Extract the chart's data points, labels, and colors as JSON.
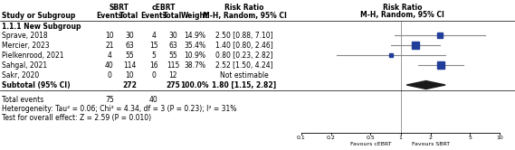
{
  "studies": [
    {
      "name": "Sprave, 2018",
      "rr": 2.5,
      "ci_lo": 0.88,
      "ci_hi": 7.1,
      "weight": "14.9%",
      "rr_str": "2.50 [0.88, 7.10]",
      "sbrt_e": 10,
      "sbrt_t": 30,
      "cebrt_e": 4,
      "cebrt_t": 30
    },
    {
      "name": "Mercier, 2023",
      "rr": 1.4,
      "ci_lo": 0.8,
      "ci_hi": 2.46,
      "weight": "35.4%",
      "rr_str": "1.40 [0.80, 2.46]",
      "sbrt_e": 21,
      "sbrt_t": 63,
      "cebrt_e": 15,
      "cebrt_t": 63
    },
    {
      "name": "Pielkenrood, 2021",
      "rr": 0.8,
      "ci_lo": 0.23,
      "ci_hi": 2.82,
      "weight": "10.9%",
      "rr_str": "0.80 [0.23, 2.82]",
      "sbrt_e": 4,
      "sbrt_t": 55,
      "cebrt_e": 5,
      "cebrt_t": 55
    },
    {
      "name": "Sahgal, 2021",
      "rr": 2.52,
      "ci_lo": 1.5,
      "ci_hi": 4.24,
      "weight": "38.7%",
      "rr_str": "2.52 [1.50, 4.24]",
      "sbrt_e": 40,
      "sbrt_t": 114,
      "cebrt_e": 16,
      "cebrt_t": 115
    },
    {
      "name": "Sakr, 2020",
      "rr": null,
      "ci_lo": null,
      "ci_hi": null,
      "weight": "",
      "rr_str": "Not estimable",
      "sbrt_e": 0,
      "sbrt_t": 10,
      "cebrt_e": 0,
      "cebrt_t": 12
    }
  ],
  "subtotal": {
    "rr": 1.8,
    "ci_lo": 1.15,
    "ci_hi": 2.82,
    "rr_str": "1.80 [1.15, 2.82]",
    "total_sbrt": 272,
    "total_cebrt": 275,
    "weight": "100.0%"
  },
  "total_events_sbrt": 75,
  "total_events_cebrt": 40,
  "heterogeneity_text": "Heterogeneity: Tau² = 0.06; Chi² = 4.34, df = 3 (P = 0.23); I² = 31%",
  "overall_effect_text": "Test for overall effect: Z = 2.59 (P = 0.010)",
  "subgroup_label": "1.1.1 New Subgroup",
  "sbrt_header": "SBRT",
  "cebrt_header": "cEBRT",
  "rr_header": "Risk Ratio",
  "mh_header": "M-H, Random, 95% CI",
  "axis_ticks": [
    0.1,
    0.2,
    0.5,
    1,
    2,
    5,
    10
  ],
  "axis_labels": [
    "0.1",
    "0.2",
    "0.5",
    "1",
    "2",
    "5",
    "10"
  ],
  "favours_left": "Favours cEBRT",
  "favours_right": "Favours SBRT",
  "diamond_color": "#1a1a1a",
  "square_color": "#1f3d99",
  "ci_line_color": "#888888",
  "text_color": "#000000",
  "bg_color": "#ffffff",
  "fig_width": 5.69,
  "fig_height": 1.66,
  "dpi": 100
}
